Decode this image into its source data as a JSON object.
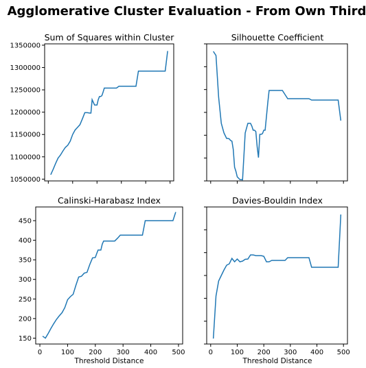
{
  "figure": {
    "title": "Agglomerative Cluster Evaluation - From Own Third"
  },
  "chart_data": [
    {
      "type": "line",
      "title": "Sum of Squares within Cluster",
      "xlabel": "",
      "ylabel": "",
      "xlim": [
        -15,
        515
      ],
      "ylim": [
        1046000,
        1353000
      ],
      "xticks": [
        0,
        100,
        200,
        300,
        400,
        500
      ],
      "show_xticklabels": false,
      "yticks": [
        1050000,
        1100000,
        1150000,
        1200000,
        1250000,
        1300000,
        1350000
      ],
      "ytick_labels": [
        "1050000",
        "1100000",
        "1150000",
        "1200000",
        "1250000",
        "1300000",
        "1350000"
      ],
      "show_yticklabels": true,
      "grid": false,
      "color": "#1f77b4",
      "x": [
        10,
        20,
        30,
        40,
        50,
        60,
        70,
        80,
        90,
        100,
        110,
        120,
        130,
        140,
        150,
        160,
        170,
        175,
        180,
        185,
        190,
        195,
        200,
        205,
        210,
        215,
        220,
        225,
        230,
        240,
        260,
        280,
        290,
        300,
        310,
        320,
        340,
        360,
        370,
        380,
        400,
        420,
        440,
        460,
        480,
        490
      ],
      "y": [
        1060000,
        1072000,
        1085000,
        1097000,
        1104000,
        1113000,
        1121000,
        1126000,
        1135000,
        1150000,
        1160000,
        1166000,
        1172000,
        1185000,
        1199000,
        1199000,
        1198000,
        1198000,
        1228000,
        1222000,
        1216000,
        1216000,
        1216000,
        1228000,
        1235000,
        1235000,
        1237000,
        1245000,
        1254000,
        1254000,
        1254000,
        1254000,
        1258000,
        1258000,
        1258000,
        1258000,
        1258000,
        1258000,
        1292000,
        1292000,
        1292000,
        1292000,
        1292000,
        1292000,
        1292000,
        1337000
      ]
    },
    {
      "type": "line",
      "title": "Silhouette Coefficient",
      "xlabel": "",
      "ylabel": "",
      "xlim": [
        -15,
        515
      ],
      "ylim": [
        0,
        1
      ],
      "xticks": [
        0,
        100,
        200,
        300,
        400,
        500
      ],
      "show_xticklabels": false,
      "yticks": [
        0.0,
        0.16667,
        0.33333,
        0.5,
        0.66667,
        0.83333,
        1.0
      ],
      "ytick_labels": [],
      "show_yticklabels": false,
      "grid": false,
      "color": "#1f77b4",
      "x": [
        10,
        20,
        30,
        40,
        50,
        60,
        65,
        70,
        75,
        80,
        85,
        90,
        95,
        100,
        110,
        120,
        130,
        140,
        145,
        150,
        155,
        160,
        165,
        170,
        175,
        180,
        185,
        190,
        195,
        200,
        205,
        210,
        215,
        220,
        225,
        230,
        240,
        260,
        270,
        280,
        290,
        300,
        320,
        340,
        360,
        370,
        380,
        400,
        420,
        440,
        460,
        480,
        490
      ],
      "y": [
        0.945,
        0.915,
        0.61,
        0.42,
        0.35,
        0.31,
        0.31,
        0.307,
        0.295,
        0.29,
        0.23,
        0.1,
        0.07,
        0.03,
        0.01,
        0.008,
        0.35,
        0.42,
        0.42,
        0.42,
        0.4,
        0.37,
        0.37,
        0.36,
        0.25,
        0.17,
        0.34,
        0.34,
        0.345,
        0.37,
        0.37,
        0.47,
        0.57,
        0.66,
        0.66,
        0.66,
        0.66,
        0.66,
        0.66,
        0.63,
        0.6,
        0.6,
        0.6,
        0.6,
        0.6,
        0.6,
        0.59,
        0.59,
        0.59,
        0.59,
        0.59,
        0.59,
        0.44
      ]
    },
    {
      "type": "line",
      "title": "Calinski-Harabasz Index",
      "xlabel": "Threshold Distance",
      "ylabel": "",
      "xlim": [
        -15,
        515
      ],
      "ylim": [
        135,
        485
      ],
      "xticks": [
        0,
        100,
        200,
        300,
        400,
        500
      ],
      "xtick_labels": [
        "0",
        "100",
        "200",
        "300",
        "400",
        "500"
      ],
      "show_xticklabels": true,
      "yticks": [
        150,
        200,
        250,
        300,
        350,
        400,
        450
      ],
      "ytick_labels": [
        "150",
        "200",
        "250",
        "300",
        "350",
        "400",
        "450"
      ],
      "show_yticklabels": true,
      "grid": false,
      "color": "#1f77b4",
      "x": [
        10,
        20,
        30,
        40,
        50,
        60,
        70,
        80,
        90,
        100,
        110,
        120,
        130,
        140,
        150,
        160,
        170,
        180,
        190,
        200,
        205,
        210,
        215,
        220,
        225,
        230,
        240,
        260,
        270,
        280,
        290,
        300,
        320,
        340,
        360,
        370,
        380,
        400,
        420,
        440,
        460,
        480,
        490
      ],
      "y": [
        155,
        150,
        162,
        175,
        187,
        198,
        207,
        215,
        228,
        248,
        256,
        262,
        285,
        306,
        308,
        316,
        318,
        338,
        355,
        356,
        366,
        375,
        375,
        375,
        390,
        398,
        398,
        398,
        398,
        405,
        413,
        413,
        413,
        413,
        413,
        413,
        450,
        450,
        450,
        450,
        450,
        450,
        472
      ]
    },
    {
      "type": "line",
      "title": "Davies-Bouldin Index",
      "xlabel": "Threshold Distance",
      "ylabel": "",
      "xlim": [
        -15,
        515
      ],
      "ylim": [
        0,
        1
      ],
      "xticks": [
        0,
        100,
        200,
        300,
        400,
        500
      ],
      "xtick_labels": [
        "0",
        "100",
        "200",
        "300",
        "400",
        "500"
      ],
      "show_xticklabels": true,
      "yticks": [
        0.0,
        0.16667,
        0.33333,
        0.5,
        0.66667,
        0.83333,
        1.0
      ],
      "ytick_labels": [],
      "show_yticklabels": false,
      "grid": false,
      "color": "#1f77b4",
      "x": [
        10,
        20,
        30,
        40,
        50,
        60,
        70,
        80,
        90,
        100,
        110,
        120,
        130,
        140,
        150,
        160,
        170,
        180,
        190,
        200,
        210,
        220,
        230,
        240,
        260,
        270,
        280,
        290,
        300,
        320,
        340,
        360,
        370,
        380,
        400,
        420,
        440,
        460,
        480,
        490
      ],
      "y": [
        0.04,
        0.35,
        0.46,
        0.5,
        0.54,
        0.575,
        0.585,
        0.625,
        0.6,
        0.62,
        0.6,
        0.605,
        0.618,
        0.62,
        0.65,
        0.65,
        0.645,
        0.645,
        0.645,
        0.64,
        0.6,
        0.6,
        0.61,
        0.61,
        0.61,
        0.61,
        0.61,
        0.63,
        0.63,
        0.63,
        0.63,
        0.63,
        0.63,
        0.56,
        0.56,
        0.56,
        0.56,
        0.56,
        0.56,
        0.945
      ]
    }
  ]
}
